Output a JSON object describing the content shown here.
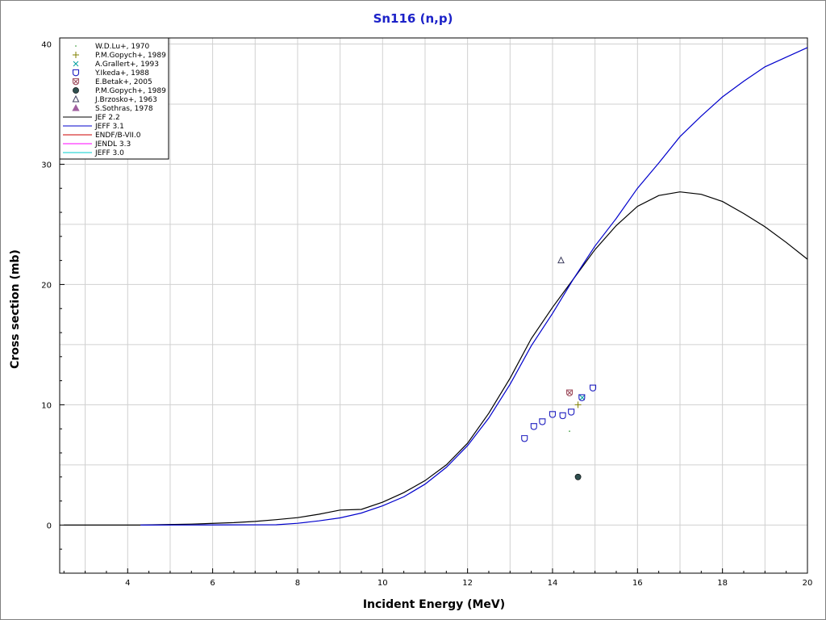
{
  "chart_data": {
    "type": "scatter",
    "title": "Sn116 (n,p)",
    "xlabel": "Incident Energy (MeV)",
    "ylabel": "Cross section (mb)",
    "xlim": [
      2.4,
      20
    ],
    "ylim": [
      -4,
      40.5
    ],
    "xticks": [
      "4",
      "6",
      "8",
      "10",
      "12",
      "14",
      "16",
      "18",
      "20"
    ],
    "yticks": [
      "0",
      "10",
      "20",
      "30",
      "40"
    ],
    "grid": true,
    "legend_position": "top-left",
    "colors": {
      "title": "#1c22c8",
      "jef22": "#000000",
      "jeff31": "#0000cc",
      "endfb7": "#cc0000",
      "jendl33": "#ff00ff",
      "jeff30": "#00cccc",
      "ikeda": "#2020c0",
      "grid": "#d0d0d0"
    },
    "series": [
      {
        "name": "W.D.Lu+, 1970",
        "kind": "point",
        "marker": "dot",
        "color": "#55aa55",
        "points": [
          [
            14.4,
            7.8
          ]
        ]
      },
      {
        "name": "P.M.Gopych+, 1989",
        "kind": "point",
        "marker": "plus",
        "color": "#808000",
        "points": [
          [
            14.6,
            10.0
          ]
        ]
      },
      {
        "name": "A.Grallert+, 1993",
        "kind": "point",
        "marker": "x",
        "color": "#00a0a0",
        "points": [
          [
            14.7,
            10.6
          ]
        ]
      },
      {
        "name": "Y.Ikeda+, 1988",
        "kind": "point",
        "marker": "shield",
        "color": "#2020c0",
        "points": [
          [
            13.34,
            7.2
          ],
          [
            13.56,
            8.2
          ],
          [
            13.76,
            8.6
          ],
          [
            14.0,
            9.2
          ],
          [
            14.24,
            9.1
          ],
          [
            14.44,
            9.4
          ],
          [
            14.69,
            10.6
          ],
          [
            14.95,
            11.4
          ]
        ]
      },
      {
        "name": "E.Betak+, 2005",
        "kind": "point",
        "marker": "xcircle",
        "color": "#a05060",
        "points": [
          [
            14.4,
            11.0
          ]
        ]
      },
      {
        "name": "P.M.Gopych+, 1989",
        "kind": "point",
        "marker": "filledcircle",
        "color": "#2f4f4f",
        "points": [
          [
            14.6,
            4.0
          ]
        ]
      },
      {
        "name": "J.Brzosko+, 1963",
        "kind": "point",
        "marker": "triangle",
        "color": "#404060",
        "points": [
          [
            14.2,
            22.0
          ]
        ]
      },
      {
        "name": "S.Sothras, 1978",
        "kind": "point",
        "marker": "filledtriangle",
        "color": "#a060a0",
        "points": []
      },
      {
        "name": "JEF 2.2",
        "kind": "line",
        "color": "#000000",
        "points": [
          [
            2.5,
            0
          ],
          [
            4.3,
            0
          ],
          [
            5.5,
            0.08
          ],
          [
            6.5,
            0.2
          ],
          [
            7.0,
            0.3
          ],
          [
            7.5,
            0.45
          ],
          [
            8.0,
            0.62
          ],
          [
            8.5,
            0.9
          ],
          [
            9.0,
            1.25
          ],
          [
            9.5,
            1.3
          ],
          [
            10.0,
            1.9
          ],
          [
            10.5,
            2.7
          ],
          [
            11.0,
            3.7
          ],
          [
            11.5,
            5.0
          ],
          [
            12.0,
            6.8
          ],
          [
            12.5,
            9.3
          ],
          [
            13.0,
            12.2
          ],
          [
            13.5,
            15.5
          ],
          [
            14.0,
            18.1
          ],
          [
            14.5,
            20.5
          ],
          [
            15.0,
            22.9
          ],
          [
            15.5,
            24.9
          ],
          [
            16.0,
            26.5
          ],
          [
            16.5,
            27.4
          ],
          [
            17.0,
            27.7
          ],
          [
            17.5,
            27.5
          ],
          [
            18.0,
            26.9
          ],
          [
            18.5,
            25.9
          ],
          [
            19.0,
            24.8
          ],
          [
            19.5,
            23.5
          ],
          [
            20.0,
            22.1
          ]
        ]
      },
      {
        "name": "JEFF 3.1",
        "kind": "line",
        "color": "#0000cc",
        "points": [
          [
            4.3,
            0
          ],
          [
            5.5,
            0.01
          ],
          [
            6.5,
            0.02
          ],
          [
            7.5,
            0.03
          ],
          [
            8.0,
            0.15
          ],
          [
            8.5,
            0.35
          ],
          [
            9.0,
            0.6
          ],
          [
            9.5,
            1.0
          ],
          [
            10.0,
            1.6
          ],
          [
            10.5,
            2.35
          ],
          [
            11.0,
            3.4
          ],
          [
            11.5,
            4.8
          ],
          [
            12.0,
            6.6
          ],
          [
            12.5,
            8.9
          ],
          [
            13.0,
            11.7
          ],
          [
            13.5,
            14.9
          ],
          [
            14.0,
            17.6
          ],
          [
            14.5,
            20.5
          ],
          [
            15.0,
            23.2
          ],
          [
            15.5,
            25.5
          ],
          [
            16.0,
            28.0
          ],
          [
            16.5,
            30.1
          ],
          [
            17.0,
            32.3
          ],
          [
            17.5,
            34.0
          ],
          [
            18.0,
            35.6
          ],
          [
            18.5,
            36.9
          ],
          [
            19.0,
            38.1
          ],
          [
            19.5,
            38.9
          ],
          [
            20.0,
            39.7
          ]
        ]
      },
      {
        "name": "ENDF/B-VII.0",
        "kind": "line",
        "color": "#cc0000",
        "points": []
      },
      {
        "name": "JENDL 3.3",
        "kind": "line",
        "color": "#ff00ff",
        "points": []
      },
      {
        "name": "JEFF 3.0",
        "kind": "line",
        "color": "#00cccc",
        "points": []
      }
    ]
  }
}
